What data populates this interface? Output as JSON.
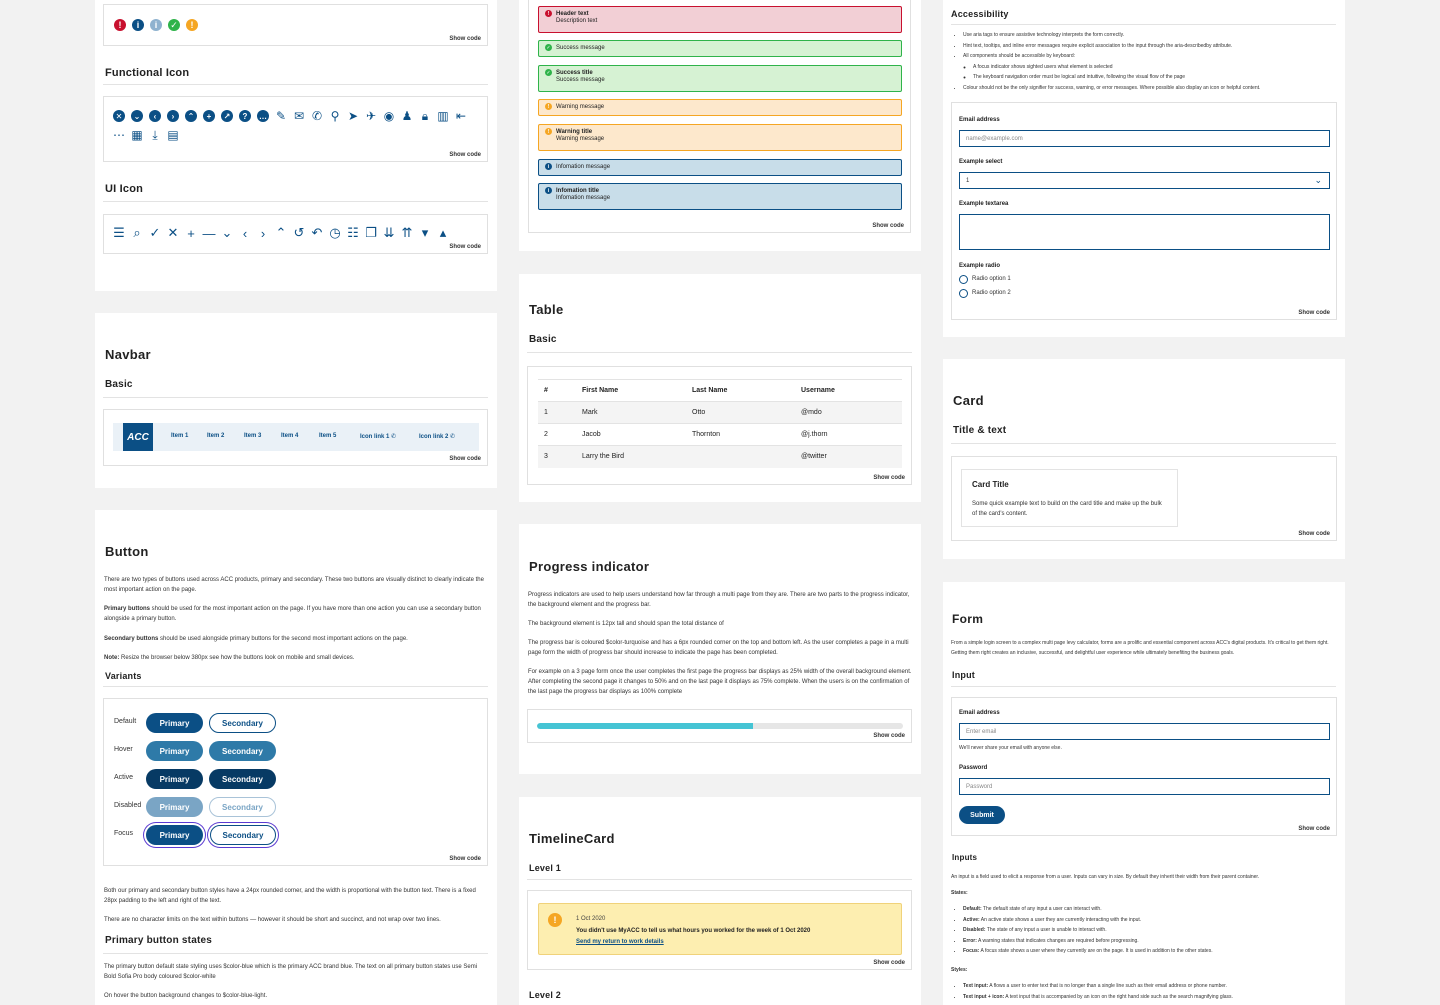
{
  "show_code": "Show code",
  "colors": {
    "brand_blue": "#0b4f85",
    "turquoise": "#45c4d4"
  },
  "col1": {
    "status_icons": [
      "error-icon",
      "info-icon",
      "info-light-icon",
      "success-icon",
      "warning-icon"
    ],
    "functional_icon_title": "Functional Icon",
    "ui_icon_title": "UI Icon",
    "navbar": {
      "title": "Navbar",
      "subtitle": "Basic",
      "logo": "ACC",
      "items": [
        "Item 1",
        "Item 2",
        "Item 3",
        "Item 4",
        "Item 5"
      ],
      "icon_links": [
        "Icon link 1",
        "Icon link 2"
      ]
    },
    "button": {
      "title": "Button",
      "intro": "There are two types of buttons used across ACC products, primary and secondary. These two buttons are visually distinct to clearly indicate the most important action on the page.",
      "primary_bold": "Primary buttons",
      "primary_text": " should be used for the most important action on the page. If you have more than one action you can use a secondary button alongside a primary button.",
      "secondary_bold": "Secondary buttons",
      "secondary_text": " should be used alongside primary buttons for the second most important actions on the page.",
      "note_bold": "Note:",
      "note_text": " Resize the browser below 380px see how the buttons look on mobile and small devices.",
      "variants_title": "Variants",
      "rows": [
        "Default",
        "Hover",
        "Active",
        "Disabled",
        "Focus"
      ],
      "primary_label": "Primary",
      "secondary_label": "Secondary",
      "after1": "Both our primary and secondary button styles have a 24px rounded corner, and the width is proportional with the button text. There is a fixed 28px padding to the left and right of the text.",
      "after2": "There are no character limits on the text within buttons — however it should be short and succinct, and not wrap over two lines.",
      "states_title": "Primary button states",
      "states1": "The primary button default state styling uses $color-blue which is the primary ACC brand blue. The text on all primary button states use Semi Bold Sofia Pro body coloured $color-white",
      "states2": "On hover the button background changes to $color-blue-light."
    }
  },
  "col2": {
    "alerts": [
      {
        "type": "error",
        "title": "Header text",
        "text": "Description text"
      },
      {
        "type": "success",
        "title": "",
        "text": "Success message"
      },
      {
        "type": "success",
        "title": "Success title",
        "text": "Success message"
      },
      {
        "type": "warning",
        "title": "",
        "text": "Warning message"
      },
      {
        "type": "warning",
        "title": "Warning title",
        "text": "Warning message"
      },
      {
        "type": "info",
        "title": "",
        "text": "Infomation message"
      },
      {
        "type": "info",
        "title": "Infomation title",
        "text": "Infomation message"
      }
    ],
    "table": {
      "title": "Table",
      "subtitle": "Basic",
      "headers": [
        "#",
        "First Name",
        "Last Name",
        "Username"
      ],
      "rows": [
        [
          "1",
          "Mark",
          "Otto",
          "@mdo"
        ],
        [
          "2",
          "Jacob",
          "Thornton",
          "@j.thorn"
        ],
        [
          "3",
          "Larry the Bird",
          "",
          "@twitter"
        ]
      ]
    },
    "progress": {
      "title": "Progress indicator",
      "p1": "Progress indicators are used to help users understand how far through a multi page from they are. There are two parts to the progress indicator, the background element and the progress bar.",
      "p2": "The background element is 12px tall and should span the total distance of",
      "p3": "The progress bar is coloured $color-turquoise and has a 6px rounded corner on the top and bottom left. As the user completes a page in a multi page form the width of progress bar should increase to indicate the page has been completed.",
      "p4": "For example on a 3 page form once the user completes the first page the progress bar displays as 25% width of the overall background element. After completing the second page it changes to 50% and on the last page it displays as 75% complete. When the users is on the confirmation of the last page the progress bar displays as 100% complete",
      "value": 0.59
    },
    "timeline": {
      "title": "TimelineCard",
      "level1": "Level 1",
      "date": "1 Oct 2020",
      "message": "You didn't use MyACC to tell us what hours you worked for the week of 1 Oct 2020",
      "link": "Send my return to work details",
      "level2": "Level 2"
    }
  },
  "col3": {
    "accessibility": {
      "title": "Accessibility",
      "bullets": [
        "Use aria tags to ensure assistive technology interprets the form correctly.",
        "Hint text, tooltips, and inline error messages require explicit association to the input through the aria-describedby attribute.",
        "All components should be accessible by keyboard:"
      ],
      "sub_bullets": [
        "A focus indicator shows sighted users what element is selected",
        "The keyboard navigation order must be logical and intuitive, following the visual flow of the page"
      ],
      "last_bullet": "Colour should not be the only signifier for success, warning, or error messages. Where possible also display an icon or helpful content.",
      "email_label": "Email address",
      "email_placeholder": "name@example.com",
      "select_label": "Example select",
      "select_value": "1",
      "textarea_label": "Example textarea",
      "radio_label": "Example radio",
      "radio_options": [
        "Radio option 1",
        "Radio option 2"
      ]
    },
    "card": {
      "title": "Card",
      "subtitle": "Title & text",
      "card_title": "Card Title",
      "card_text": "Some quick example text to build on the card title and make up the bulk of the card's content."
    },
    "form": {
      "title": "Form",
      "intro": "From a simple login screen to a complex multi page levy calculator, forms are a prolific and essential component across ACC's digital products. It's critical to get them right. Getting them right creates an inclusive, successful, and delightful user experience while ultimately benefiting the business goals.",
      "input_title": "Input",
      "email_label": "Email address",
      "email_placeholder": "Enter email",
      "email_help": "We'll never share your email with anyone else.",
      "password_label": "Password",
      "password_placeholder": "Password",
      "submit": "Submit",
      "inputs_title": "Inputs",
      "inputs_intro": "An input is a field used to elicit a response from a user. Inputs can vary in size. By default they inherit their width from their parent container.",
      "states_label": "States:",
      "states": [
        {
          "k": "Default:",
          "v": " The default state of any input a user can interact with."
        },
        {
          "k": "Active:",
          "v": " An active state shows a user they are currently interacting with the input."
        },
        {
          "k": "Disabled:",
          "v": " The state of any input a user is unable to interact with."
        },
        {
          "k": "Error:",
          "v": " A warning states that indicates changes are required before progressing."
        },
        {
          "k": "Focus:",
          "v": " A focus state shows a user where they currently are on the page. It is used in addition to the other states."
        }
      ],
      "styles_label": "Styles:",
      "styles": [
        {
          "k": "Text input:",
          "v": " A flows a user to enter text that is no longer than a single line such as their email address or phone number."
        },
        {
          "k": "Text input + icon:",
          "v": " A text input that is accompanied by an icon on the right hand side such as the search magnifying glass."
        }
      ]
    }
  }
}
